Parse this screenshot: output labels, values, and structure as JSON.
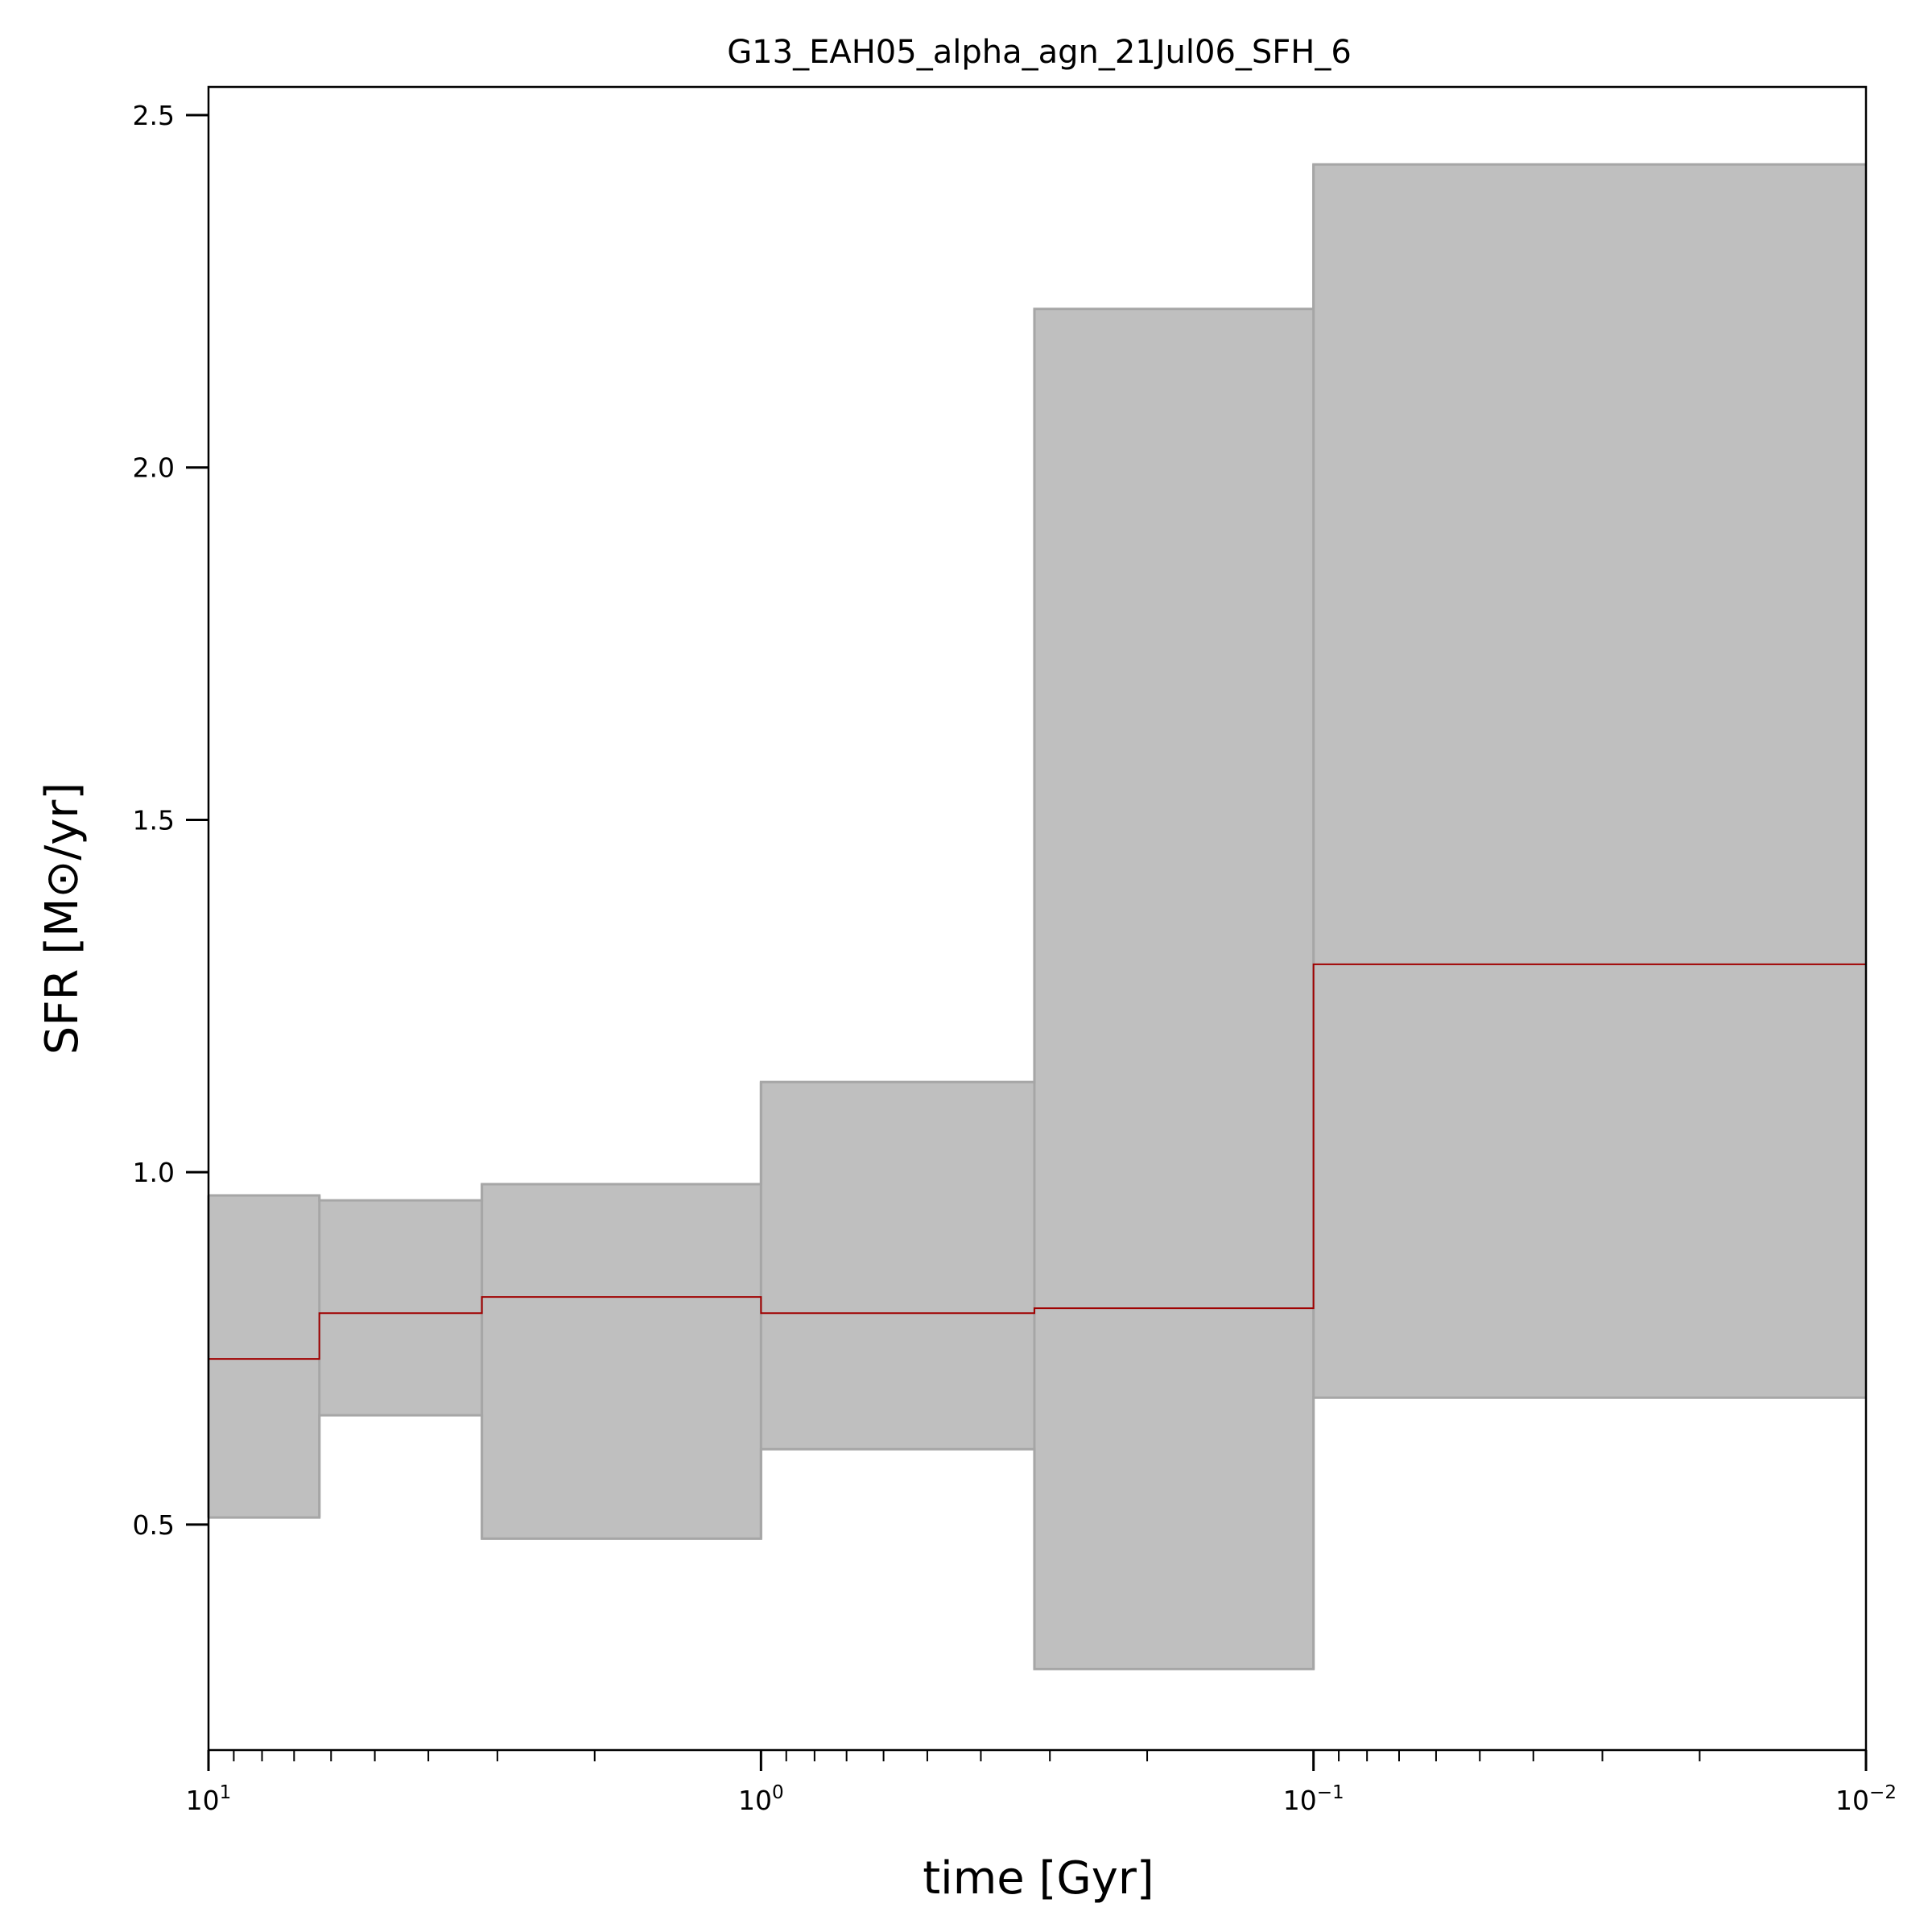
{
  "chart_data": {
    "type": "area",
    "title": "G13_EAH05_alpha_agn_21Jul06_SFH_6",
    "xlabel": "time [Gyr]",
    "ylabel": "SFR [M⊙/yr]",
    "x_scale": "log",
    "x_inverted": true,
    "xlim": [
      10,
      0.01
    ],
    "ylim": [
      0.18,
      2.54
    ],
    "x_major_ticks": [
      {
        "value": 10,
        "base": "10",
        "exp": "1"
      },
      {
        "value": 1,
        "base": "10",
        "exp": "0"
      },
      {
        "value": 0.1,
        "base": "10",
        "exp": "−1"
      },
      {
        "value": 0.01,
        "base": "10",
        "exp": "−2"
      }
    ],
    "y_ticks": [
      {
        "value": 0.5,
        "label": "0.5"
      },
      {
        "value": 1.0,
        "label": "1.0"
      },
      {
        "value": 1.5,
        "label": "1.5"
      },
      {
        "value": 2.0,
        "label": "2.0"
      },
      {
        "value": 2.5,
        "label": "2.5"
      }
    ],
    "grid": false,
    "bins": [
      {
        "x_start": 10.0,
        "x_end": 6.3,
        "median": 0.735,
        "lower": 0.51,
        "upper": 0.967
      },
      {
        "x_start": 6.3,
        "x_end": 3.2,
        "median": 0.8,
        "lower": 0.655,
        "upper": 0.96
      },
      {
        "x_start": 3.2,
        "x_end": 1.0,
        "median": 0.823,
        "lower": 0.48,
        "upper": 0.983
      },
      {
        "x_start": 1.0,
        "x_end": 0.32,
        "median": 0.8,
        "lower": 0.607,
        "upper": 1.128
      },
      {
        "x_start": 0.32,
        "x_end": 0.1,
        "median": 0.807,
        "lower": 0.295,
        "upper": 2.225
      },
      {
        "x_start": 0.1,
        "x_end": 0.01,
        "median": 1.295,
        "lower": 0.68,
        "upper": 2.43
      }
    ],
    "colors": {
      "band_fill": "#bfbfbf",
      "band_edge": "#a6a6a6",
      "median_line": "#a00000"
    }
  }
}
